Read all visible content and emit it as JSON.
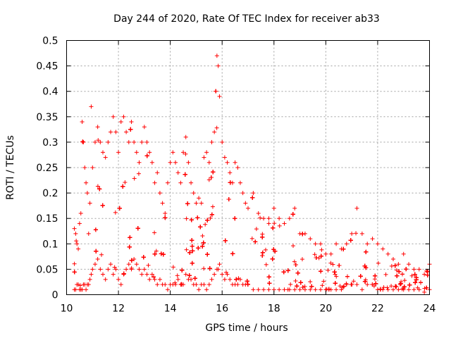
{
  "chart_data": {
    "type": "scatter",
    "title": "Day 244 of 2020, Rate Of TEC Index for receiver ab33",
    "xlabel": "GPS time / hours",
    "ylabel": "ROTI / TECUs",
    "xlim": [
      10,
      24
    ],
    "ylim": [
      0,
      0.5
    ],
    "x_ticks": [
      "10",
      "12",
      "14",
      "16",
      "18",
      "20",
      "22",
      "24"
    ],
    "y_ticks": [
      "0",
      "0.05",
      "0.1",
      "0.15",
      "0.2",
      "0.25",
      "0.3",
      "0.35",
      "0.4",
      "0.45",
      "0.5"
    ],
    "grid": true,
    "marker": "plus",
    "color": "#ff0000",
    "series": [
      {
        "x": [
          10.3,
          10.35,
          10.4,
          10.45,
          10.5,
          10.55,
          10.6,
          10.65,
          10.7,
          10.75,
          10.8,
          10.85,
          10.9,
          10.95,
          11.0,
          11.1,
          11.2,
          11.3,
          11.4,
          11.5,
          11.6,
          11.7,
          11.8,
          11.9,
          12.0,
          12.1,
          12.2,
          12.3,
          12.4,
          12.5,
          12.6,
          12.7,
          12.8,
          12.9,
          13.0,
          13.1,
          13.2,
          13.3,
          13.4,
          13.5,
          13.6,
          13.7,
          13.8,
          13.9,
          14.0,
          14.1,
          14.2,
          14.3,
          14.4,
          14.5,
          14.6,
          14.7,
          14.8,
          14.9,
          15.0,
          15.1,
          15.2,
          15.3,
          15.4,
          15.5,
          15.6,
          15.7,
          15.8,
          15.85,
          15.9,
          16.0,
          16.1,
          16.2,
          16.3,
          16.4,
          16.5,
          16.6,
          16.7,
          16.8,
          16.9,
          17.0,
          17.2,
          17.4,
          17.6,
          17.8,
          18.0,
          18.2,
          18.4,
          18.6,
          18.8,
          19.0,
          19.2,
          19.4,
          19.6,
          19.8,
          20.0,
          20.2,
          20.4,
          20.6,
          20.8,
          21.0,
          21.2,
          21.4,
          21.6,
          21.8,
          22.0,
          22.2,
          22.4,
          22.6,
          22.8,
          23.0,
          23.2,
          23.4,
          23.6,
          23.8,
          24.0
        ],
        "y_max": [
          0.13,
          0.12,
          0.1,
          0.09,
          0.14,
          0.16,
          0.34,
          0.3,
          0.25,
          0.22,
          0.2,
          0.12,
          0.18,
          0.37,
          0.25,
          0.3,
          0.33,
          0.3,
          0.28,
          0.27,
          0.3,
          0.32,
          0.35,
          0.32,
          0.28,
          0.34,
          0.35,
          0.32,
          0.3,
          0.34,
          0.3,
          0.28,
          0.26,
          0.3,
          0.33,
          0.3,
          0.28,
          0.26,
          0.22,
          0.24,
          0.2,
          0.18,
          0.16,
          0.22,
          0.26,
          0.28,
          0.26,
          0.24,
          0.22,
          0.28,
          0.31,
          0.26,
          0.22,
          0.2,
          0.18,
          0.19,
          0.18,
          0.27,
          0.28,
          0.26,
          0.3,
          0.32,
          0.47,
          0.45,
          0.39,
          0.3,
          0.27,
          0.26,
          0.24,
          0.22,
          0.26,
          0.25,
          0.22,
          0.2,
          0.18,
          0.17,
          0.2,
          0.16,
          0.15,
          0.15,
          0.17,
          0.15,
          0.14,
          0.15,
          0.17,
          0.12,
          0.12,
          0.11,
          0.1,
          0.1,
          0.08,
          0.08,
          0.1,
          0.09,
          0.1,
          0.12,
          0.17,
          0.12,
          0.1,
          0.11,
          0.1,
          0.09,
          0.08,
          0.07,
          0.06,
          0.08,
          0.06,
          0.05,
          0.05,
          0.04,
          0.06
        ],
        "y_min": [
          0.01,
          0.01,
          0.02,
          0.02,
          0.01,
          0.01,
          0.01,
          0.02,
          0.02,
          0.01,
          0.02,
          0.02,
          0.03,
          0.04,
          0.05,
          0.06,
          0.07,
          0.05,
          0.04,
          0.03,
          0.05,
          0.06,
          0.04,
          0.05,
          0.03,
          0.02,
          0.04,
          0.05,
          0.06,
          0.05,
          0.07,
          0.06,
          0.05,
          0.04,
          0.05,
          0.04,
          0.03,
          0.04,
          0.03,
          0.02,
          0.03,
          0.02,
          0.02,
          0.01,
          0.02,
          0.02,
          0.02,
          0.03,
          0.02,
          0.02,
          0.04,
          0.03,
          0.03,
          0.02,
          0.02,
          0.01,
          0.02,
          0.02,
          0.01,
          0.02,
          0.03,
          0.04,
          0.05,
          0.05,
          0.06,
          0.04,
          0.03,
          0.04,
          0.03,
          0.02,
          0.02,
          0.02,
          0.03,
          0.02,
          0.02,
          0.02,
          0.01,
          0.01,
          0.01,
          0.01,
          0.01,
          0.01,
          0.01,
          0.01,
          0.01,
          0.01,
          0.01,
          0.01,
          0.01,
          0.01,
          0.01,
          0.01,
          0.01,
          0.01,
          0.02,
          0.02,
          0.02,
          0.01,
          0.02,
          0.02,
          0.01,
          0.01,
          0.01,
          0.01,
          0.01,
          0.01,
          0.01,
          0.01,
          0.01,
          0.005,
          0.01
        ]
      }
    ]
  }
}
